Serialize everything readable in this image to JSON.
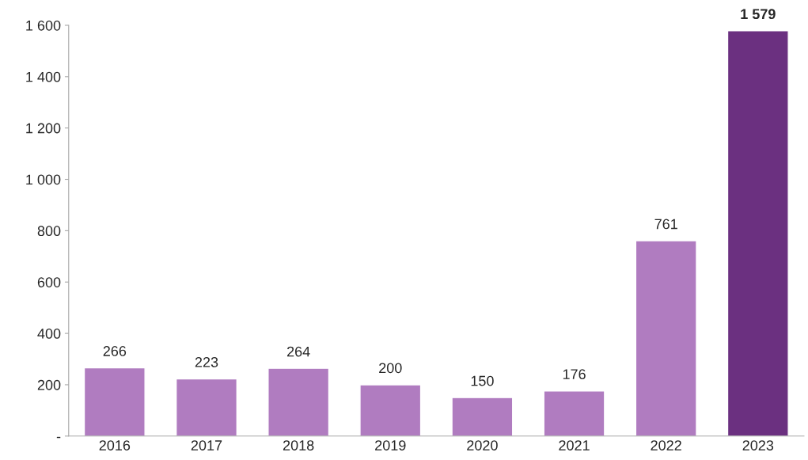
{
  "chart_data": {
    "type": "bar",
    "categories": [
      "2016",
      "2017",
      "2018",
      "2019",
      "2020",
      "2021",
      "2022",
      "2023"
    ],
    "values": [
      266,
      223,
      264,
      200,
      150,
      176,
      761,
      1579
    ],
    "colors": [
      "#b07cc0",
      "#b07cc0",
      "#b07cc0",
      "#b07cc0",
      "#b07cc0",
      "#b07cc0",
      "#b07cc0",
      "#6b3080"
    ],
    "value_labels": [
      "266",
      "223",
      "264",
      "200",
      "150",
      "176",
      "761",
      "1 579"
    ],
    "ylim": [
      0,
      1600
    ],
    "yticks": [
      {
        "value": 0,
        "label": "-"
      },
      200,
      400,
      600,
      800,
      {
        "value": 1000,
        "label": "1 000"
      },
      {
        "value": 1200,
        "label": "1 200"
      },
      {
        "value": 1400,
        "label": "1 400"
      },
      {
        "value": 1600,
        "label": "1 600"
      }
    ],
    "grid": false,
    "legend": false
  }
}
